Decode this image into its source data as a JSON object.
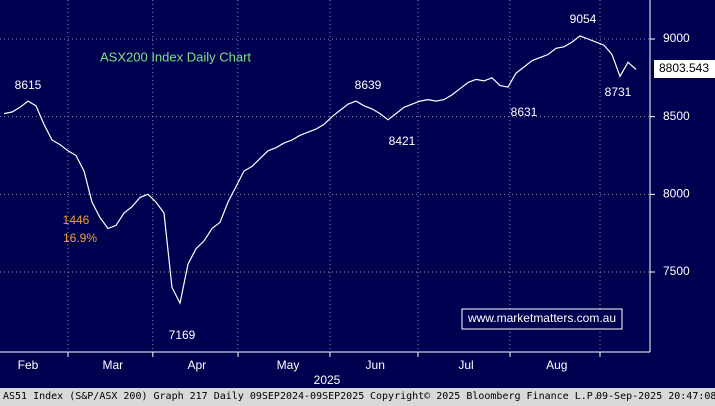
{
  "chart_data": {
    "type": "line",
    "title": "ASX200 Index Daily Chart",
    "color": "#ffffff",
    "values": [
      8520,
      8530,
      8560,
      8600,
      8570,
      8450,
      8350,
      8320,
      8280,
      8250,
      8150,
      7950,
      7850,
      7780,
      7800,
      7880,
      7920,
      7980,
      8000,
      7950,
      7880,
      7400,
      7300,
      7550,
      7650,
      7700,
      7780,
      7820,
      7950,
      8050,
      8150,
      8180,
      8230,
      8280,
      8300,
      8330,
      8350,
      8380,
      8400,
      8420,
      8450,
      8500,
      8540,
      8580,
      8600,
      8570,
      8550,
      8520,
      8480,
      8520,
      8560,
      8580,
      8600,
      8610,
      8600,
      8610,
      8640,
      8680,
      8720,
      8740,
      8730,
      8750,
      8700,
      8690,
      8780,
      8820,
      8860,
      8880,
      8900,
      8940,
      8950,
      8980,
      9020,
      9000,
      8980,
      8960,
      8900,
      8760,
      8850,
      8804
    ],
    "xlim": [
      0,
      79
    ],
    "xticks": [
      {
        "value": 3,
        "label": "Feb"
      },
      {
        "value": 13.6,
        "label": "Mar"
      },
      {
        "value": 24.1,
        "label": "Apr"
      },
      {
        "value": 35.5,
        "label": "May"
      },
      {
        "value": 46.4,
        "label": "Jun"
      },
      {
        "value": 57.75,
        "label": "Jul"
      },
      {
        "value": 69.1,
        "label": "Aug"
      }
    ],
    "xgrid": [
      8,
      18.6,
      29.25,
      40.75,
      51.75,
      63.25,
      74.5
    ],
    "x_label": "2025",
    "ylim": [
      6985,
      9251
    ],
    "yticks": [
      7500,
      8000,
      8500,
      9000
    ],
    "grid": true,
    "last_price": "8803.543",
    "annotations": [
      "8615",
      "7169",
      "8639",
      "8421",
      "8631",
      "9054",
      "8731",
      "1446",
      "16.9%"
    ],
    "watermark": "www.marketmatters.com.au",
    "footer": [
      "AS51 Index (S&P/ASX 200) Graph 217  Daily 09SEP2024-09SEP2025",
      "Copyright© 2025 Bloomberg Finance L.P.",
      "09-Sep-2025 20:47:08"
    ]
  }
}
